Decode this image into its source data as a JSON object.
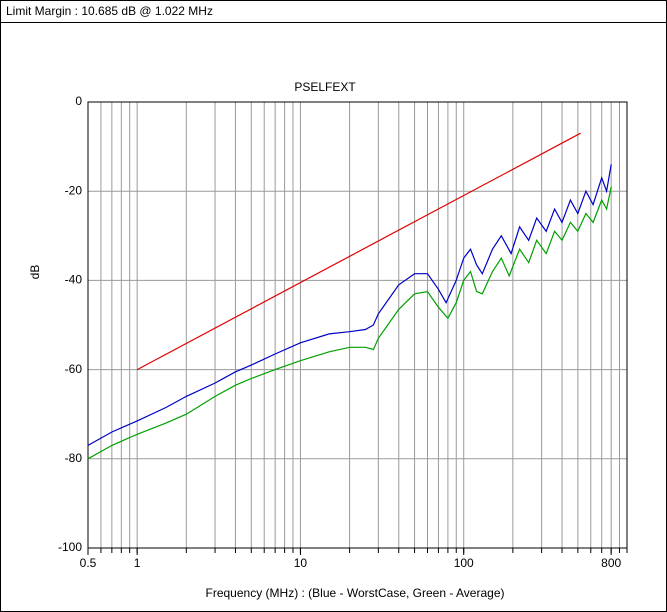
{
  "header": "Limit Margin : 10.685 dB @ 1.022 MHz",
  "chart_data": {
    "type": "line",
    "title": "PSELFEXT",
    "x_label": "Frequency (MHz) : (Blue - WorstCase, Green - Average)",
    "y_label": "dB",
    "xscale": "log",
    "xlim": [
      0.5,
      1000
    ],
    "xticks": [
      0.5,
      1,
      10,
      100,
      800
    ],
    "ylim": [
      -100,
      0
    ],
    "yticks": [
      -100,
      -80,
      -60,
      -40,
      -20,
      0
    ],
    "grid": true,
    "series": [
      {
        "name": "Limit",
        "color": "#e00000",
        "x": [
          1,
          520
        ],
        "values": [
          -60,
          -7
        ]
      },
      {
        "name": "WorstCase",
        "color": "#0000c8",
        "x": [
          0.5,
          0.7,
          1,
          1.5,
          2,
          3,
          4,
          5,
          7,
          10,
          15,
          20,
          25,
          28,
          30,
          40,
          50,
          60,
          70,
          78,
          90,
          100,
          110,
          120,
          130,
          150,
          170,
          195,
          220,
          250,
          280,
          320,
          360,
          400,
          450,
          500,
          560,
          620,
          700,
          750,
          800
        ],
        "values": [
          -77,
          -74,
          -71.5,
          -68.5,
          -66,
          -63,
          -60.5,
          -59,
          -56.5,
          -54,
          -52,
          -51.5,
          -51,
          -50,
          -47.5,
          -41,
          -38.5,
          -38.5,
          -42,
          -45,
          -40,
          -35,
          -33,
          -36.5,
          -38.5,
          -33,
          -30,
          -34,
          -28,
          -31,
          -26,
          -29,
          -24,
          -27,
          -22,
          -25,
          -20,
          -23,
          -17,
          -20,
          -14
        ]
      },
      {
        "name": "Average",
        "color": "#00a000",
        "x": [
          0.5,
          0.7,
          1,
          1.5,
          2,
          3,
          4,
          5,
          7,
          10,
          15,
          20,
          25,
          28,
          30,
          40,
          50,
          60,
          70,
          80,
          90,
          100,
          110,
          120,
          130,
          150,
          170,
          190,
          220,
          250,
          280,
          320,
          360,
          400,
          450,
          500,
          560,
          620,
          700,
          750,
          800
        ],
        "values": [
          -80,
          -77,
          -74.5,
          -72,
          -70,
          -66,
          -63.5,
          -62,
          -60,
          -58,
          -56,
          -55,
          -55,
          -55.5,
          -53,
          -46.5,
          -43,
          -42.5,
          -46,
          -48.5,
          -45,
          -40,
          -38,
          -42.5,
          -43,
          -38,
          -35,
          -39,
          -33,
          -36,
          -31,
          -34,
          -29,
          -31,
          -27,
          -29,
          -25,
          -27,
          -22,
          -24,
          -19
        ]
      }
    ]
  }
}
